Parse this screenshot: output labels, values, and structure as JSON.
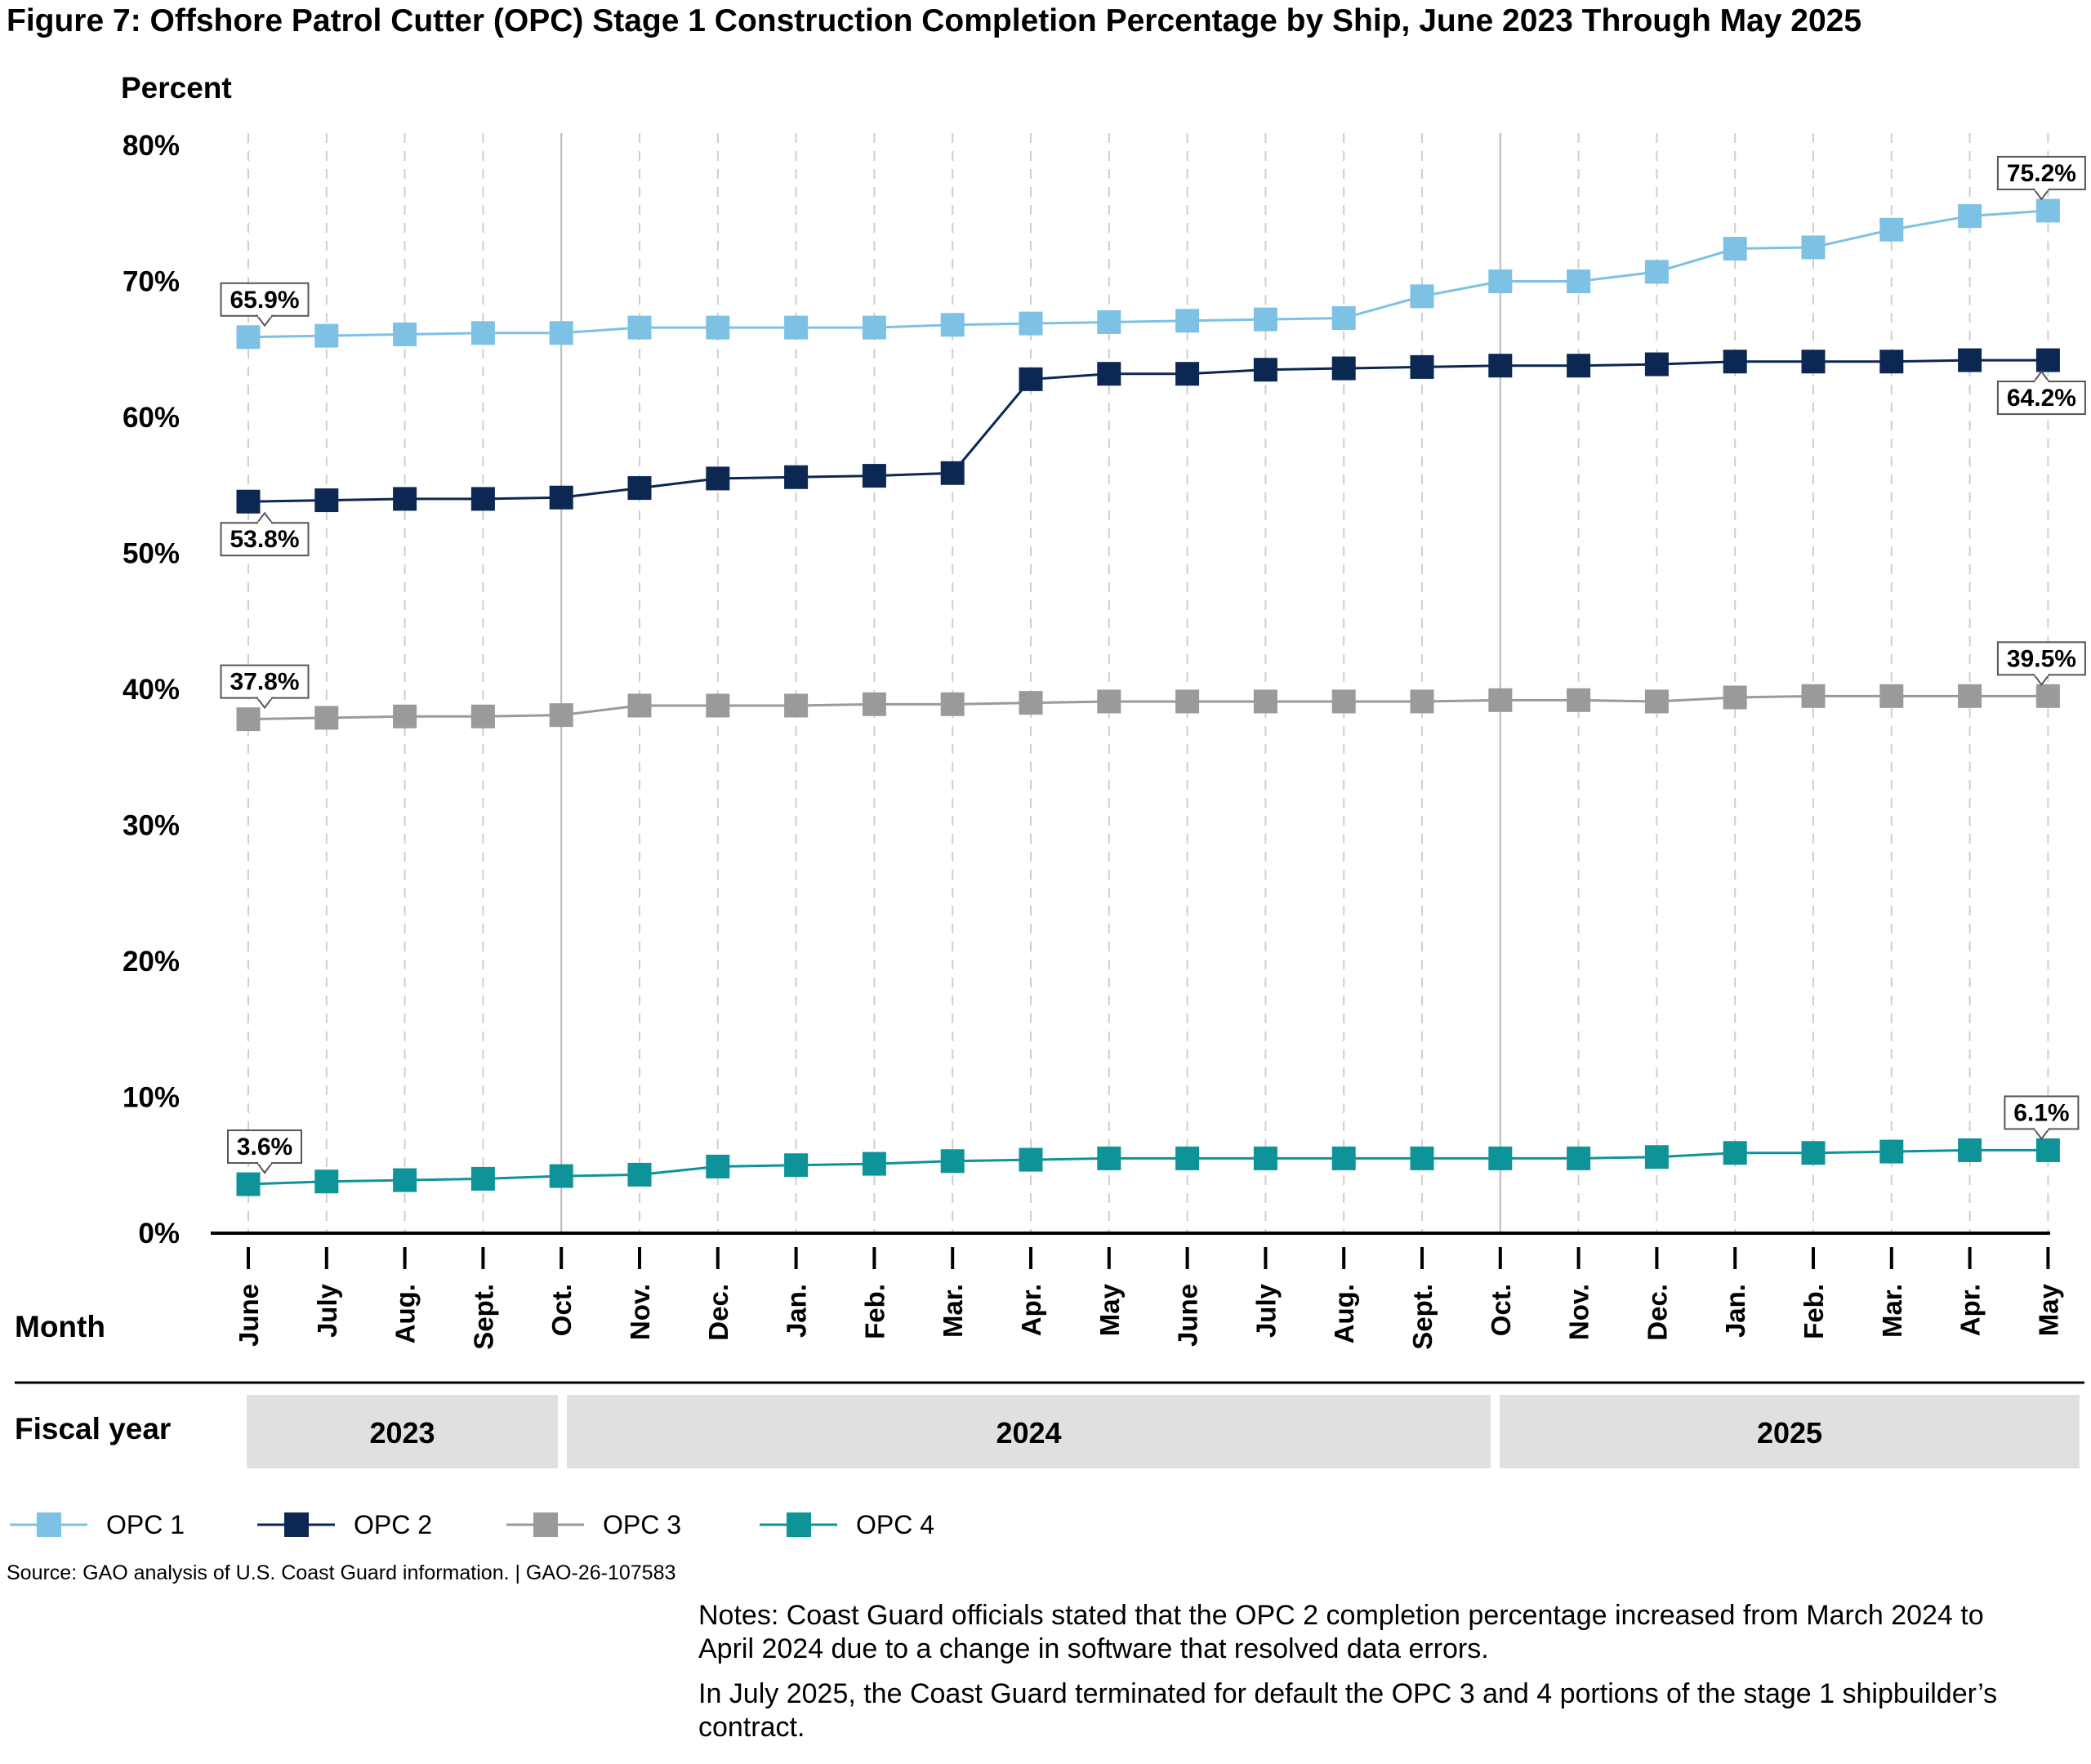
{
  "title": "Figure 7: Offshore Patrol Cutter (OPC) Stage 1 Construction Completion Percentage by Ship, June 2023 Through May 2025",
  "y_axis_title": "Percent",
  "x_axis_title": "Month",
  "fiscal_year_title": "Fiscal year",
  "source": "Source: GAO analysis of U.S. Coast Guard information.  |  GAO-26-107583",
  "notes": [
    "Notes: Coast Guard officials stated that the OPC 2 completion percentage increased from March 2024 to April 2024 due to a change in software that resolved data errors.",
    "In July 2025, the Coast Guard terminated for default the OPC 3 and 4 portions of the stage 1 shipbuilder’s contract."
  ],
  "chart_data": {
    "type": "line",
    "title": "Figure 7: Offshore Patrol Cutter (OPC) Stage 1 Construction Completion Percentage by Ship, June 2023 Through May 2025",
    "xlabel": "Month",
    "ylabel": "Percent",
    "ylim": [
      0,
      80
    ],
    "yticks": [
      "0%",
      "10%",
      "20%",
      "30%",
      "40%",
      "50%",
      "60%",
      "70%",
      "80%"
    ],
    "grid": "vertical dashed",
    "categories": [
      "June",
      "July",
      "Aug.",
      "Sept.",
      "Oct.",
      "Nov.",
      "Dec.",
      "Jan.",
      "Feb.",
      "Mar.",
      "Apr.",
      "May",
      "June",
      "July",
      "Aug.",
      "Sept.",
      "Oct.",
      "Nov.",
      "Dec.",
      "Jan.",
      "Feb.",
      "Mar.",
      "Apr.",
      "May"
    ],
    "fiscal_years": [
      {
        "label": "2023",
        "start": 0,
        "end": 4
      },
      {
        "label": "2024",
        "start": 4,
        "end": 16
      },
      {
        "label": "2025",
        "start": 16,
        "end": 23
      }
    ],
    "legend_position": "bottom-left",
    "series": [
      {
        "name": "OPC 1",
        "color": "#7DC1E5",
        "values": [
          65.9,
          66.0,
          66.1,
          66.2,
          66.2,
          66.6,
          66.6,
          66.6,
          66.6,
          66.8,
          66.9,
          67.0,
          67.1,
          67.2,
          67.3,
          68.9,
          70.0,
          70.0,
          70.7,
          72.4,
          72.5,
          73.8,
          74.8,
          75.2
        ],
        "start_label": "65.9%",
        "end_label": "75.2%",
        "start_label_side": "above",
        "end_label_side": "above"
      },
      {
        "name": "OPC 2",
        "color": "#0B2752",
        "values": [
          53.8,
          53.9,
          54.0,
          54.0,
          54.1,
          54.8,
          55.5,
          55.6,
          55.7,
          55.9,
          62.8,
          63.2,
          63.2,
          63.5,
          63.6,
          63.7,
          63.8,
          63.8,
          63.9,
          64.1,
          64.1,
          64.1,
          64.2,
          64.2
        ],
        "start_label": "53.8%",
        "end_label": "64.2%",
        "start_label_side": "below",
        "end_label_side": "below"
      },
      {
        "name": "OPC 3",
        "color": "#9A9A9A",
        "values": [
          37.8,
          37.9,
          38.0,
          38.0,
          38.1,
          38.8,
          38.8,
          38.8,
          38.9,
          38.9,
          39.0,
          39.1,
          39.1,
          39.1,
          39.1,
          39.1,
          39.2,
          39.2,
          39.1,
          39.4,
          39.5,
          39.5,
          39.5,
          39.5
        ],
        "start_label": "37.8%",
        "end_label": "39.5%",
        "start_label_side": "above",
        "end_label_side": "above"
      },
      {
        "name": "OPC 4",
        "color": "#0E9398",
        "values": [
          3.6,
          3.8,
          3.9,
          4.0,
          4.2,
          4.3,
          4.9,
          5.0,
          5.1,
          5.3,
          5.4,
          5.5,
          5.5,
          5.5,
          5.5,
          5.5,
          5.5,
          5.5,
          5.6,
          5.9,
          5.9,
          6.0,
          6.1,
          6.1
        ],
        "start_label": "3.6%",
        "end_label": "6.1%",
        "start_label_side": "above",
        "end_label_side": "above"
      }
    ]
  }
}
